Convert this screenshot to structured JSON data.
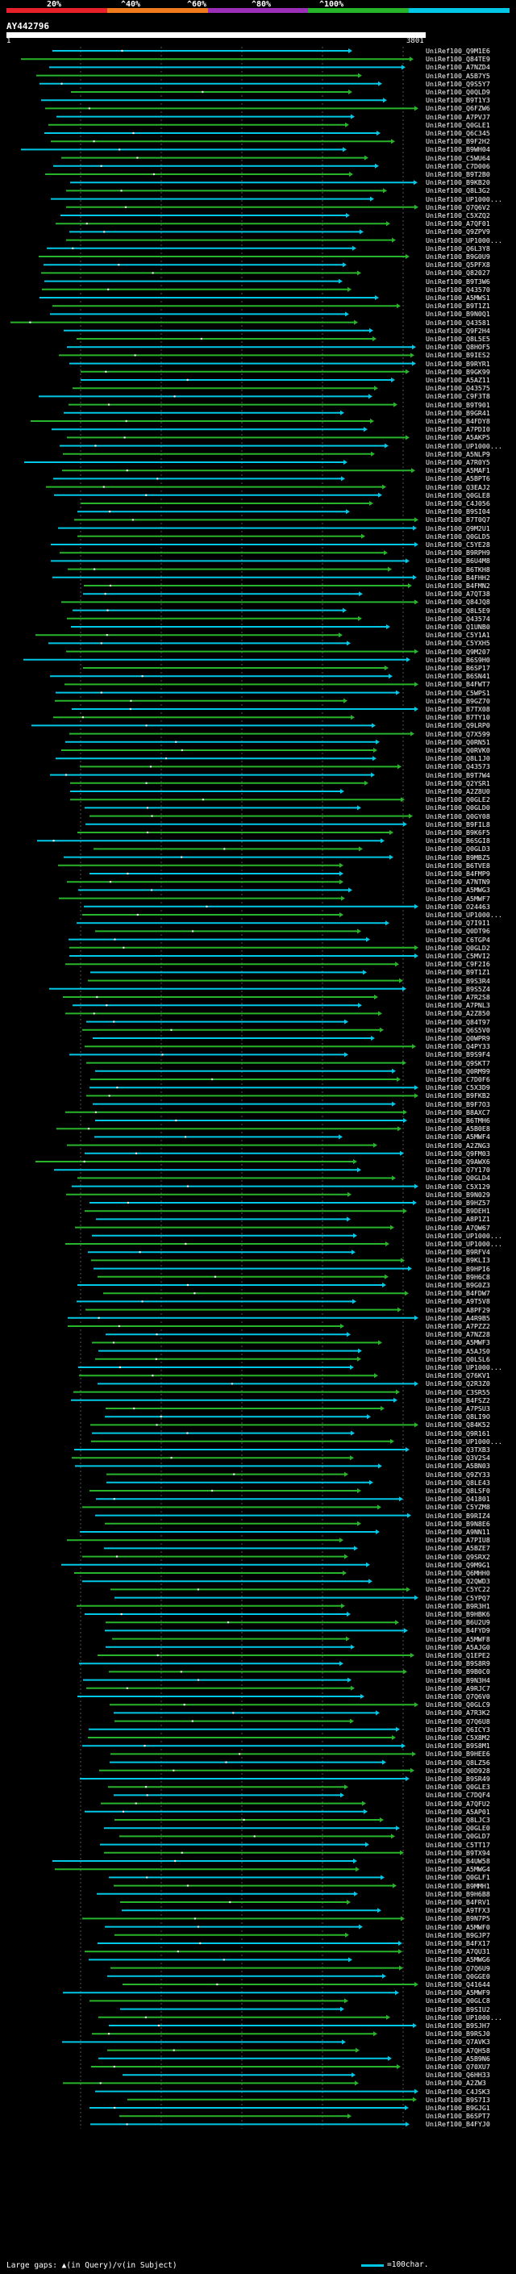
{
  "colorbar": {
    "segments": [
      {
        "color": "#e8202a",
        "from": 0,
        "to": 20
      },
      {
        "color": "#f07a1c",
        "from": 20,
        "to": 40
      },
      {
        "color": "#9b2fb8",
        "from": 40,
        "to": 60
      },
      {
        "color": "#28b42a",
        "from": 60,
        "to": 80
      },
      {
        "color": "#00c8e6",
        "from": 80,
        "to": 100
      }
    ],
    "labels": [
      "20%",
      "^40%",
      "^60%",
      "^80%",
      "^100%"
    ]
  },
  "query": {
    "id": "AY442796",
    "start": "1",
    "end": "3801"
  },
  "chart_data": {
    "type": "alignment",
    "title": "AY442796",
    "xlim": [
      1,
      3801
    ],
    "row_label_prefix": "UniRef100_",
    "identity_colors": {
      "high": "#00c8e6",
      "mid": "#28b42a",
      "dark": "#1e7a1e"
    },
    "hits": [
      "Q9M1E6",
      "Q84TE9",
      "A7NZD4",
      "A5B7Y5",
      "Q9S5Y7",
      "Q0QLD9",
      "B9T1Y3",
      "Q6FZW6",
      "A7PVJ7",
      "Q0GLE1",
      "Q6C345",
      "B9F2H2",
      "B9WH04",
      "C5WU64",
      "C7D006",
      "B9T2B0",
      "B9KB20",
      "Q8L3G2",
      "UP1000...",
      "Q7Q6V2",
      "C5XZQ2",
      "A7QF01",
      "Q9ZPV9",
      "UP1000...",
      "Q6L3Y8",
      "B9G0U9",
      "Q5PFX8",
      "Q82027",
      "B9T3W6",
      "Q43570",
      "A5MWS1",
      "B9T1Z1",
      "B9N0Q1",
      "Q43581",
      "Q9F2H4",
      "Q8L5E5",
      "Q8HOF5",
      "B9IES2",
      "B9RYR1",
      "B9GK99",
      "A5AZ11",
      "Q43575",
      "C9F3T8",
      "B9T901",
      "B9GR41",
      "B4FDY8",
      "A7PDI0",
      "A5AKP5",
      "UP1000...",
      "A5NLP9",
      "A7R0Y5",
      "A5MAF1",
      "A5BPT6",
      "Q3EAJ2",
      "Q0GLE8",
      "C4J056",
      "B9SI04",
      "B7T0Q7",
      "Q9M2U1",
      "Q0GLD5",
      "C5YE28",
      "B9RPH9",
      "B6U4M8",
      "B6TKH8",
      "B4FHH2",
      "B4FMN2",
      "A7QT38",
      "Q84JQ8",
      "Q8L5E9",
      "Q43574",
      "Q1UNB0",
      "C5Y1A1",
      "C5YXH5",
      "Q9M207",
      "B6S9H0",
      "B6SP17",
      "B6SN41",
      "B4FWT7",
      "C5WPS1",
      "B9GZ70",
      "B7TX08",
      "B7TY10",
      "Q9LRP0",
      "Q7X599",
      "Q0RN51",
      "Q0RVK0",
      "Q8L1J0",
      "Q43573",
      "B9T7W4",
      "Q2YSR1",
      "A2Z8U0",
      "Q0GLE2",
      "Q0GLD0",
      "Q0GY08",
      "B9FIL8",
      "B9K6F5",
      "B6SGI8",
      "Q0GLD3",
      "B9MBZ5",
      "B6TVE8",
      "B4FMP9",
      "A7NTN9",
      "A5MWG3",
      "A5MWF7",
      "O24463",
      "UP1000...",
      "Q7I9I1",
      "Q0DT96",
      "C6TGP4",
      "Q0GLD2",
      "C5MVI2",
      "C9F2I6",
      "B9T1Z1",
      "B9S3R4",
      "B9S5Z4",
      "A7R2S8",
      "A7PNL3",
      "A2Z850",
      "Q84T97",
      "Q6S5V0",
      "Q0WPR9",
      "Q4PY33",
      "B9S9F4",
      "Q9SKT7",
      "Q0RM99",
      "C7D0F6",
      "C5X3D9",
      "B9FKB2",
      "B9F7O3",
      "B8AXC7",
      "B6TMH6",
      "A5B0E8",
      "A5MWF4",
      "A2ZNG3",
      "Q9FM03",
      "Q9AWX6",
      "Q7Y170",
      "Q0GLD4",
      "C5X129",
      "B9N029",
      "B9HZ57",
      "B9DEH1",
      "A8P1Z1",
      "A7QW67",
      "UP1000...",
      "UP1000...",
      "B9RFV4",
      "B9KLI3",
      "B9HPI6",
      "B9H6C8",
      "B9G0Z3",
      "B4FDW7",
      "A9T5V8",
      "A8PF29",
      "A4R9B5",
      "A7PZZ2",
      "A7NZ28",
      "A5MWF3",
      "A5AJS0",
      "Q0LSL6",
      "UP1000...",
      "Q76KV1",
      "Q2R3Z0",
      "C3SR55",
      "B4FSZ2",
      "A7PSU3",
      "Q8LI9O",
      "Q84K52",
      "Q9R161",
      "UP1000...",
      "Q3TXB3",
      "Q3V2S4",
      "A5BN03",
      "Q9ZY33",
      "Q8LE43",
      "Q8LSF0",
      "Q41801",
      "C5YZM8",
      "B9RIZ4",
      "B9N8E6",
      "A9NN11",
      "A7PIU8",
      "A5BZE7",
      "Q9SRX2",
      "Q9M9G1",
      "Q6MHH0",
      "Q2QWD3",
      "C5YC22",
      "C5YPQ7",
      "B9R3H1",
      "B9HBK6",
      "B6U2U9",
      "B4FYD9",
      "A5MWF8",
      "A5AJG0",
      "Q1EPE2",
      "B9S8R9",
      "B9B0C0",
      "B9N3H4",
      "A9RJC7",
      "Q7Q6V0",
      "Q0GLC9",
      "A7R3K2",
      "Q7Q6U8",
      "Q6ICY3",
      "C5X8M2",
      "B9S8M1",
      "B9HEE6",
      "Q8LZ56",
      "Q0D928",
      "B9SR49",
      "Q0GLE3",
      "C7DQF4",
      "A7QFU2",
      "A5AP01",
      "Q8LJC3",
      "Q0GLE0",
      "Q0GLD7",
      "C5TT17",
      "B9TX94",
      "B4UW58",
      "A5MWG4",
      "Q0GLF1",
      "B9MMH1",
      "B9H6B8",
      "B4FRV1",
      "A9TFX3",
      "B9N7P5",
      "A5MWF0",
      "B9GJP7",
      "B4FX17",
      "A7QU31",
      "A5MWG6",
      "Q7Q6U9",
      "Q0GGE0",
      "Q41644",
      "A5MWF9",
      "Q0GLC8",
      "B9SIU2",
      "UP1000...",
      "B9SJH7",
      "B9RSJ0",
      "Q7AVK3",
      "A7QH58",
      "A5B9N6",
      "Q70XU7",
      "Q6HH33",
      "A2ZW3",
      "C4JSK3",
      "B9S7I3",
      "B9GJG1",
      "B6SPT7",
      "B4FYJ0"
    ]
  },
  "legend": {
    "text": "Large gaps: ▲(in Query)/▽(in Subject)",
    "scale_label": "=100char."
  }
}
